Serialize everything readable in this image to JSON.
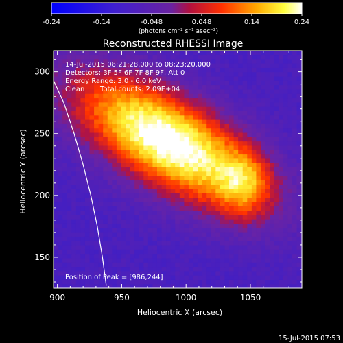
{
  "colorbar": {
    "ticks": [
      "-0.24",
      "-0.14",
      "-0.048",
      "0.048",
      "0.14",
      "0.24"
    ],
    "tick_values": [
      -0.24,
      -0.144,
      -0.048,
      0.048,
      0.144,
      0.24
    ],
    "range": [
      -0.24,
      0.24
    ],
    "units_line": "(photons cm⁻² s⁻¹ asec⁻²)"
  },
  "chart_data": {
    "type": "heatmap",
    "title": "Reconstructed RHESSI Image",
    "xlabel": "Heliocentric X (arcsec)",
    "ylabel": "Heliocentric Y (arcsec)",
    "xlim": [
      897,
      1090
    ],
    "ylim": [
      125,
      317
    ],
    "xticks": [
      900,
      950,
      1000,
      1050
    ],
    "yticks": [
      150,
      200,
      250,
      300
    ],
    "xtick_labels": [
      "900",
      "950",
      "1000",
      "1050"
    ],
    "ytick_labels": [
      "150",
      "200",
      "250",
      "300"
    ],
    "annotations": [
      "14-Jul-2015 08:21:28.000 to 08:23:20.000",
      "Detectors: 3F 5F 6F 7F 8F 9F, Att 0",
      "Energy Range: 3.0 - 6.0 keV",
      "Clean",
      "Total counts: 2.09E+04"
    ],
    "peak_label": "Position of Peak = [986,244]",
    "peak": [
      986,
      244
    ],
    "limb_curve": [
      [
        897,
        293
      ],
      [
        905,
        275
      ],
      [
        913,
        250
      ],
      [
        920,
        225
      ],
      [
        926,
        200
      ],
      [
        931,
        175
      ],
      [
        935,
        150
      ],
      [
        938,
        127
      ]
    ],
    "value_range": [
      -0.24,
      0.24
    ],
    "grid": false,
    "colormap": "hessi"
  },
  "footer": {
    "timestamp": "15-Jul-2015 07:53"
  }
}
